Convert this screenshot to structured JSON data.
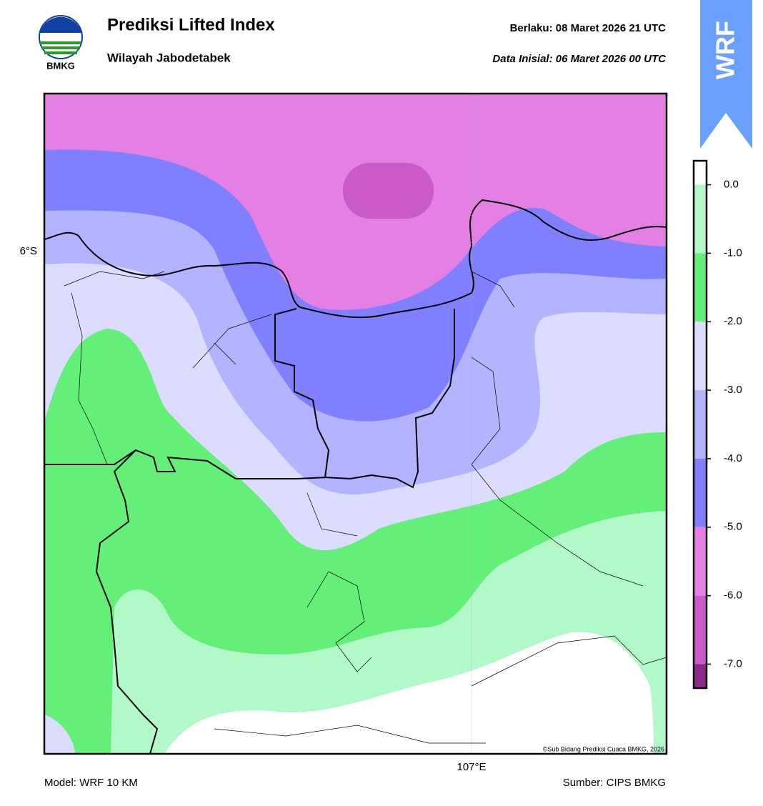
{
  "header": {
    "title": "Prediksi Lifted Index",
    "subtitle": "Wilayah Jabodetabek",
    "logo_text": "BMKG",
    "valid": "Berlaku:  08 Maret 2026 21 UTC",
    "init": "Data Inisial:  06 Maret 2026 00 UTC",
    "badge": "WRF"
  },
  "map": {
    "lat_label": "6°S",
    "lon_label": "107°E",
    "credit": "©Sub Bidang Prediksi Cuaca BMKG, 2026"
  },
  "colorbar": {
    "lim": [
      -7.35,
      0.35
    ],
    "segments": [
      {
        "from": 0.35,
        "to": 0,
        "color": "#ffffff"
      },
      {
        "from": 0,
        "to": -1,
        "color": "#b3f8c8"
      },
      {
        "from": -1,
        "to": -2,
        "color": "#64ef78"
      },
      {
        "from": -2,
        "to": -3,
        "color": "#dcdcff"
      },
      {
        "from": -3,
        "to": -4,
        "color": "#b3b3ff"
      },
      {
        "from": -4,
        "to": -5,
        "color": "#7f7fff"
      },
      {
        "from": -5,
        "to": -6,
        "color": "#e480e4"
      },
      {
        "from": -6,
        "to": -7,
        "color": "#c95ac9"
      },
      {
        "from": -7,
        "to": -7.35,
        "color": "#8c2a8c"
      }
    ],
    "ticks": [
      {
        "value": 0,
        "label": "0.0"
      },
      {
        "value": -1,
        "label": "-1.0"
      },
      {
        "value": -2,
        "label": "-2.0"
      },
      {
        "value": -3,
        "label": "-3.0"
      },
      {
        "value": -4,
        "label": "-4.0"
      },
      {
        "value": -5,
        "label": "-5.0"
      },
      {
        "value": -6,
        "label": "-6.0"
      },
      {
        "value": -7,
        "label": "-7.0"
      }
    ]
  },
  "footer": {
    "model": "Model: WRF 10 KM",
    "source": "Sumber: CIPS BMKG"
  }
}
